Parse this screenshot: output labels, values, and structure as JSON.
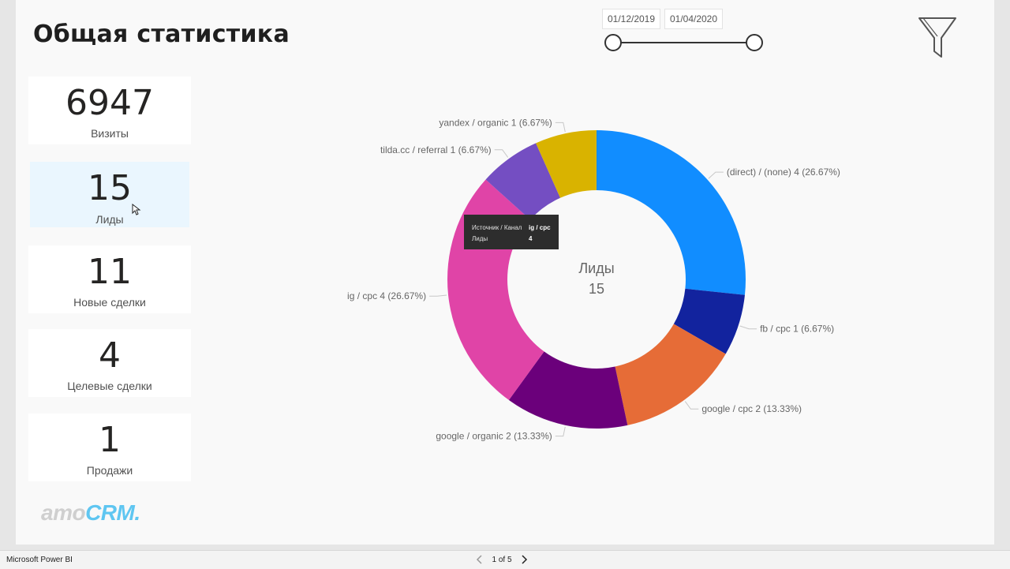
{
  "page": {
    "title": "Общая статистика"
  },
  "date_range": {
    "start": "01/12/2019",
    "end": "01/04/2020"
  },
  "filter": {
    "icon": "filter-funnel-icon"
  },
  "kpis": [
    {
      "value": "6947",
      "label": "Визиты"
    },
    {
      "value": "15",
      "label": "Лиды"
    },
    {
      "value": "11",
      "label": "Новые сделки"
    },
    {
      "value": "4",
      "label": "Целевые сделки"
    },
    {
      "value": "1",
      "label": "Продажи"
    }
  ],
  "chart_data": {
    "type": "pie",
    "donut": true,
    "center_label": "Лиды",
    "center_value": "15",
    "slices": [
      {
        "label": "(direct) / (none)",
        "value": 4,
        "percent": "26.67%",
        "color": "#118dff",
        "text": "(direct) / (none) 4 (26.67%)"
      },
      {
        "label": "fb / cpc",
        "value": 1,
        "percent": "6.67%",
        "color": "#12239e",
        "text": "fb / cpc 1 (6.67%)"
      },
      {
        "label": "google / cpc",
        "value": 2,
        "percent": "13.33%",
        "color": "#e66c37",
        "text": "google / cpc 2 (13.33%)"
      },
      {
        "label": "google / organic",
        "value": 2,
        "percent": "13.33%",
        "color": "#6b007b",
        "text": "google / organic 2 (13.33%)"
      },
      {
        "label": "ig / cpc",
        "value": 4,
        "percent": "26.67%",
        "color": "#e044a7",
        "text": "ig / cpc 4 (26.67%)"
      },
      {
        "label": "tilda.cc / referral",
        "value": 1,
        "percent": "6.67%",
        "color": "#744ec2",
        "text": "tilda.cc / referral 1 (6.67%)"
      },
      {
        "label": "yandex / organic",
        "value": 1,
        "percent": "6.67%",
        "color": "#d9b300",
        "text": "yandex / organic 1 (6.67%)"
      }
    ]
  },
  "tooltip": {
    "rows": [
      {
        "key": "Источник / Канал",
        "value": "ig / cpc"
      },
      {
        "key": "Лиды",
        "value": "4"
      }
    ]
  },
  "logo": {
    "part1": "amo",
    "part2": "CRM."
  },
  "statusbar": {
    "app_name": "Microsoft Power BI",
    "page_indicator": "1 of 5"
  }
}
